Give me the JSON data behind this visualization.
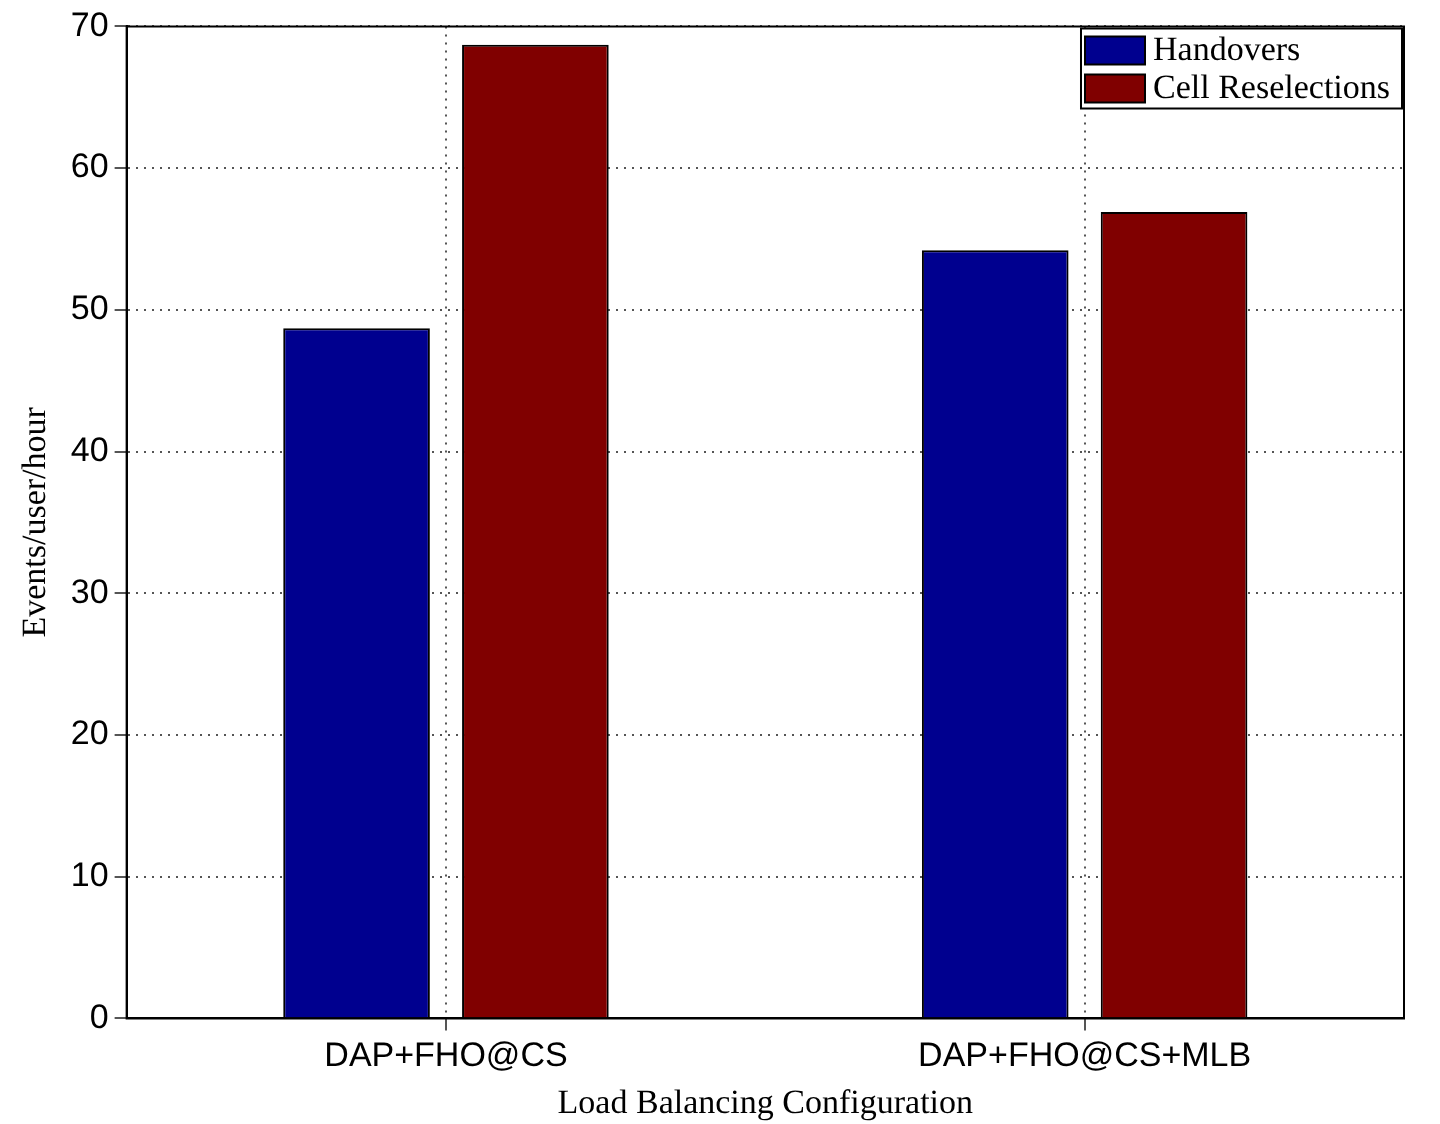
{
  "chart_data": {
    "type": "bar",
    "xlabel": "Load Balancing Configuration",
    "ylabel": "Events/user/hour",
    "categories": [
      "DAP+FHO@CS",
      "DAP+FHO@CS+MLB"
    ],
    "series": [
      {
        "name": "Handovers",
        "color": "#00008f",
        "values": [
          48.7,
          54.2
        ]
      },
      {
        "name": "Cell Reselections",
        "color": "#800000",
        "values": [
          68.7,
          56.9
        ]
      }
    ],
    "ylim": [
      0,
      70
    ],
    "yticks": [
      0,
      10,
      20,
      30,
      40,
      50,
      60,
      70
    ],
    "grid": true,
    "legend": "top right"
  }
}
